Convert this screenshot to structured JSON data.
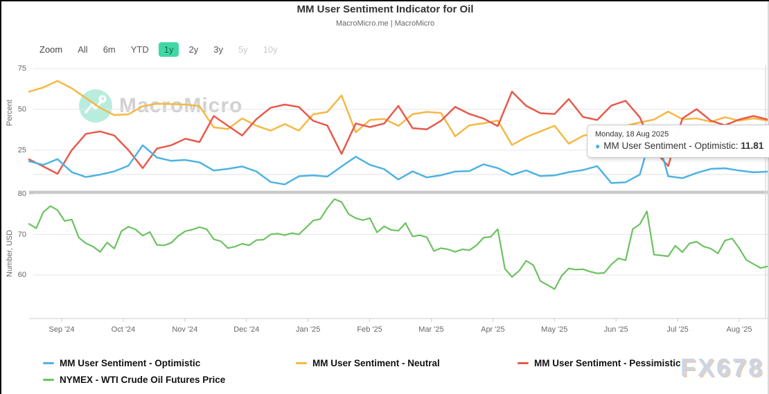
{
  "header": {
    "title": "MM User Sentiment Indicator for Oil",
    "subtitle": "MacroMicro.me | MacroMicro"
  },
  "range_selector": {
    "zoom_label": "Zoom",
    "buttons": [
      {
        "label": "All",
        "state": "normal"
      },
      {
        "label": "6m",
        "state": "normal"
      },
      {
        "label": "YTD",
        "state": "normal"
      },
      {
        "label": "1y",
        "state": "selected"
      },
      {
        "label": "2y",
        "state": "normal"
      },
      {
        "label": "3y",
        "state": "normal"
      },
      {
        "label": "5y",
        "state": "disabled"
      },
      {
        "label": "10y",
        "state": "disabled"
      }
    ]
  },
  "tooltip": {
    "date": "Monday, 18 Aug 2025",
    "series_label": "MM User Sentiment - Optimistic: ",
    "value": "11.81",
    "marker_color": "#4EB2E2"
  },
  "watermarks": {
    "macromicro": "MacroMicro",
    "fx": "FX678"
  },
  "colors": {
    "optimistic": "#4EB2E2",
    "neutral": "#F5B842",
    "pessimistic": "#E8594B",
    "oil": "#6BC25F",
    "selected_range_bg": "#3FD8A4",
    "grid": "#E6E6E6",
    "axis_line": "#CCCCCC",
    "separator": "#C7C7C7",
    "crosshair": "#DDDDDD"
  },
  "chart_data": {
    "type": "line",
    "title": "MM User Sentiment Indicator for Oil",
    "legend_position": "bottom",
    "grid": true,
    "x_categories": [
      "Sep '24",
      "Oct '24",
      "Nov '24",
      "Dec '24",
      "Jan '25",
      "Feb '25",
      "Mar '25",
      "Apr '25",
      "May '25",
      "Jun '25",
      "Jul '25",
      "Aug '25"
    ],
    "x_range": [
      "Aug 2024",
      "18 Aug 2025"
    ],
    "panes": [
      {
        "ylabel": "Percent",
        "yticks": [
          75,
          50,
          25
        ],
        "ylim": [
          0,
          80
        ],
        "series": [
          {
            "name": "MM User Sentiment - Optimistic",
            "slug": "optimistic",
            "color": "#4EB2E2",
            "values": [
              18.2,
              16,
              19.5,
              11.5,
              8.5,
              10,
              12,
              15.5,
              28,
              20.5,
              18.5,
              19,
              17.5,
              12.5,
              13.5,
              15,
              12,
              5.5,
              4,
              9,
              9.5,
              8.8,
              15,
              21,
              16,
              13.4,
              7,
              12,
              8.3,
              9.6,
              11.9,
              12.2,
              16.3,
              14,
              9.8,
              12.6,
              9.1,
              9.5,
              11.5,
              12.8,
              15.2,
              4.8,
              5.3,
              10,
              40.2,
              9,
              7.8,
              11,
              13.5,
              13.9,
              12.5,
              11.4,
              11.81
            ]
          },
          {
            "name": "MM User Sentiment - Neutral",
            "slug": "neutral",
            "color": "#F5B842",
            "values": [
              60.9,
              63.5,
              67.5,
              63,
              57,
              51,
              46.5,
              47,
              52,
              53.5,
              53.3,
              53,
              52,
              39,
              38,
              44.5,
              40,
              37,
              41,
              37,
              47,
              48.5,
              58.6,
              36,
              43.5,
              44.2,
              39.9,
              47.1,
              48.5,
              47.8,
              33.5,
              40.3,
              41.5,
              43.2,
              28.2,
              33,
              36.5,
              40,
              29,
              33.8,
              36,
              38,
              40,
              42,
              43.8,
              48.7,
              44,
              44.5,
              42.4,
              45.2,
              43.1,
              44.5,
              43.2
            ]
          },
          {
            "name": "MM User Sentiment - Pessimistic",
            "slug": "pessimistic",
            "color": "#E8594B",
            "values": [
              19.4,
              15,
              10.5,
              25,
              35,
              36.5,
              34,
              25,
              14,
              26,
              28,
              32,
              30,
              46,
              40,
              34,
              44,
              51,
              53,
              51.5,
              43,
              40.1,
              22.7,
              41.4,
              39.2,
              41.4,
              52.2,
              38.5,
              37.8,
              43,
              51.6,
              47.2,
              44.4,
              39.8,
              60.9,
              52.2,
              47.7,
              47.2,
              56.4,
              45.4,
              43.5,
              52.4,
              55.3,
              45.2,
              25,
              15.3,
              44.5,
              50.2,
              43.1,
              40.3,
              43.8,
              46,
              43.8
            ]
          }
        ]
      },
      {
        "ylabel": "Number, USD",
        "yticks": [
          80,
          70,
          60
        ],
        "ylim": [
          49,
          83
        ],
        "series": [
          {
            "name": "NYMEX - WTI Crude Oil Futures Price",
            "slug": "oil",
            "color": "#6BC25F",
            "values": [
              72.6,
              71.5,
              75.5,
              77,
              76,
              73.3,
              73.7,
              69.2,
              67.8,
              67,
              65.7,
              68,
              66.5,
              70.8,
              71.9,
              71.2,
              69.7,
              70.6,
              67.4,
              67.3,
              67.9,
              69.6,
              70.8,
              71.2,
              71.8,
              71.3,
              68.8,
              68.3,
              66.6,
              67,
              67.7,
              67.3,
              68.6,
              68.7,
              70,
              70.2,
              69.8,
              70.3,
              70,
              71.7,
              73.4,
              73.8,
              76.5,
              78.7,
              78,
              75,
              74,
              73.5,
              74,
              70.5,
              72,
              71.1,
              70.9,
              72.8,
              69.5,
              69.8,
              69.3,
              65.9,
              66.6,
              66.3,
              65.7,
              66.3,
              66.1,
              67.3,
              69.2,
              69.4,
              71.3,
              61.5,
              59.5,
              61,
              63.5,
              62.4,
              58.5,
              57.5,
              56.5,
              59.8,
              61.6,
              61.3,
              61.4,
              60.8,
              60.4,
              60.5,
              62.6,
              64.1,
              63.6,
              71.3,
              72.5,
              75.7,
              65,
              64.8,
              64.6,
              67.2,
              65.6,
              67.8,
              68.2,
              67,
              66.5,
              65.3,
              68.5,
              69,
              66.6,
              63.7,
              62.7,
              61.7,
              62.1
            ]
          }
        ]
      }
    ]
  }
}
